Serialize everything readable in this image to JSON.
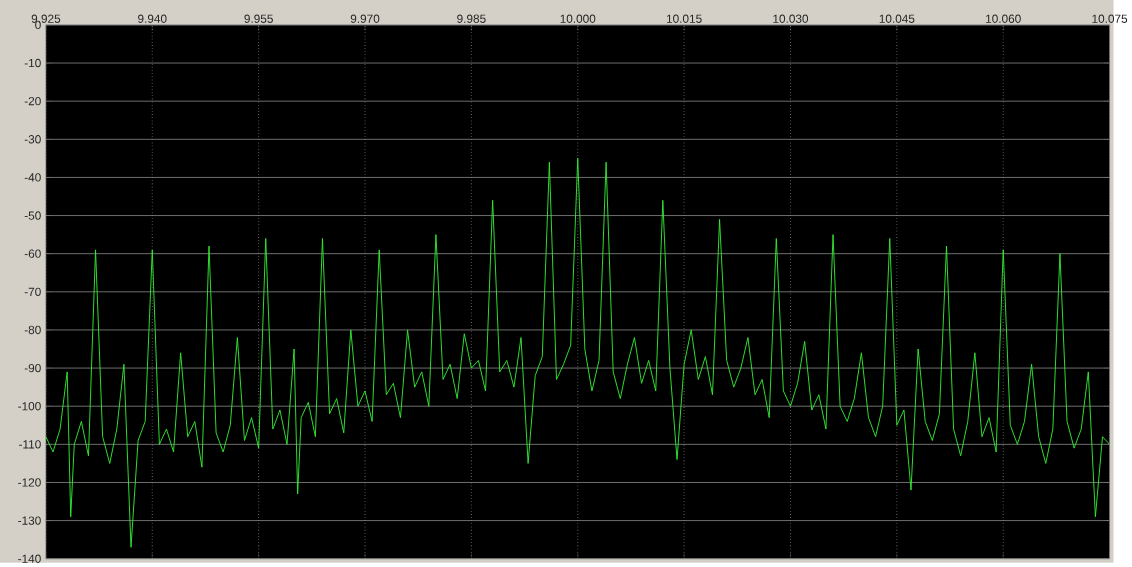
{
  "chart_data": {
    "type": "line",
    "x": [
      9.925,
      9.926,
      9.927,
      9.928,
      9.9285,
      9.929,
      9.93,
      9.931,
      9.932,
      9.933,
      9.934,
      9.935,
      9.936,
      9.937,
      9.938,
      9.939,
      9.94,
      9.941,
      9.942,
      9.943,
      9.944,
      9.945,
      9.946,
      9.947,
      9.948,
      9.949,
      9.95,
      9.951,
      9.952,
      9.953,
      9.954,
      9.955,
      9.956,
      9.957,
      9.958,
      9.959,
      9.96,
      9.9605,
      9.961,
      9.962,
      9.963,
      9.964,
      9.965,
      9.966,
      9.967,
      9.968,
      9.969,
      9.97,
      9.971,
      9.972,
      9.973,
      9.974,
      9.975,
      9.976,
      9.977,
      9.978,
      9.979,
      9.98,
      9.981,
      9.982,
      9.983,
      9.984,
      9.985,
      9.986,
      9.987,
      9.988,
      9.989,
      9.99,
      9.991,
      9.992,
      9.993,
      9.994,
      9.995,
      9.996,
      9.997,
      9.998,
      9.999,
      10.0,
      10.001,
      10.002,
      10.003,
      10.004,
      10.005,
      10.006,
      10.007,
      10.008,
      10.009,
      10.01,
      10.011,
      10.012,
      10.013,
      10.014,
      10.015,
      10.016,
      10.017,
      10.018,
      10.019,
      10.02,
      10.021,
      10.022,
      10.023,
      10.024,
      10.025,
      10.026,
      10.027,
      10.028,
      10.029,
      10.03,
      10.031,
      10.032,
      10.033,
      10.034,
      10.035,
      10.036,
      10.037,
      10.038,
      10.039,
      10.04,
      10.041,
      10.042,
      10.043,
      10.044,
      10.045,
      10.046,
      10.047,
      10.048,
      10.049,
      10.05,
      10.051,
      10.052,
      10.053,
      10.054,
      10.055,
      10.056,
      10.057,
      10.058,
      10.059,
      10.06,
      10.061,
      10.062,
      10.063,
      10.064,
      10.065,
      10.066,
      10.067,
      10.068,
      10.069,
      10.07,
      10.071,
      10.072,
      10.073,
      10.074,
      10.075
    ],
    "series": [
      {
        "color": "#33ee33",
        "values": [
          -108,
          -112,
          -106,
          -91,
          -129,
          -110,
          -104,
          -113,
          -59,
          -108,
          -115,
          -106,
          -89,
          -137,
          -109,
          -104,
          -59,
          -110,
          -106,
          -112,
          -86,
          -108,
          -104,
          -116,
          -58,
          -107,
          -112,
          -105,
          -82,
          -109,
          -103,
          -111,
          -56,
          -106,
          -101,
          -110,
          -85,
          -123,
          -103,
          -99,
          -108,
          -56,
          -102,
          -98,
          -107,
          -80,
          -100,
          -96,
          -104,
          -59,
          -97,
          -94,
          -103,
          -80,
          -95,
          -91,
          -100,
          -55,
          -93,
          -89,
          -98,
          -81,
          -90,
          -88,
          -96,
          -46,
          -91,
          -88,
          -95,
          -82,
          -115,
          -92,
          -87,
          -36,
          -93,
          -89,
          -84,
          -35,
          -85,
          -96,
          -88,
          -36,
          -91,
          -98,
          -89,
          -82,
          -94,
          -88,
          -96,
          -46,
          -90,
          -114,
          -89,
          -80,
          -93,
          -87,
          -97,
          -51,
          -88,
          -95,
          -90,
          -82,
          -97,
          -93,
          -103,
          -56,
          -96,
          -100,
          -94,
          -83,
          -101,
          -97,
          -106,
          -55,
          -100,
          -104,
          -98,
          -86,
          -103,
          -108,
          -100,
          -56,
          -105,
          -101,
          -122,
          -85,
          -104,
          -109,
          -102,
          -58,
          -106,
          -113,
          -104,
          -86,
          -108,
          -103,
          -112,
          -59,
          -105,
          -110,
          -104,
          -89,
          -108,
          -115,
          -106,
          -60,
          -104,
          -111,
          -106,
          -91,
          -129,
          -108,
          -110
        ]
      }
    ],
    "xlim": [
      9.925,
      10.075
    ],
    "ylim": [
      -140,
      0
    ],
    "xticks": [
      {
        "value": 9.925,
        "label": "9.925"
      },
      {
        "value": 9.94,
        "label": "9.940"
      },
      {
        "value": 9.955,
        "label": "9.955"
      },
      {
        "value": 9.97,
        "label": "9.970"
      },
      {
        "value": 9.985,
        "label": "9.985"
      },
      {
        "value": 10.0,
        "label": "10.000"
      },
      {
        "value": 10.015,
        "label": "10.015"
      },
      {
        "value": 10.03,
        "label": "10.030"
      },
      {
        "value": 10.045,
        "label": "10.045"
      },
      {
        "value": 10.06,
        "label": "10.060"
      },
      {
        "value": 10.075,
        "label": "10.075"
      }
    ],
    "yticks": [
      0,
      -10,
      -20,
      -30,
      -40,
      -50,
      -60,
      -70,
      -80,
      -90,
      -100,
      -110,
      -120,
      -130,
      -140
    ],
    "grid": true,
    "marker": "none"
  }
}
